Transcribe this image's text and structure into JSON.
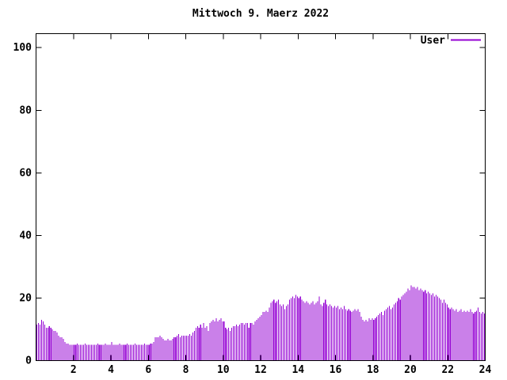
{
  "window": {
    "background": "#ffffff",
    "foreground": "#000000"
  },
  "legend": {
    "label": "User",
    "color": "#9400d3",
    "position": "top-right-inside"
  },
  "axes": {
    "y": {
      "tick_labels": [
        "0",
        "20",
        "40",
        "60",
        "80",
        "100"
      ],
      "tick_values": [
        0,
        20,
        40,
        60,
        80,
        100
      ]
    },
    "x": {
      "tick_labels": [
        "2",
        "4",
        "6",
        "8",
        "10",
        "12",
        "14",
        "16",
        "18",
        "20",
        "22",
        "24"
      ],
      "tick_values": [
        2,
        4,
        6,
        8,
        10,
        12,
        14,
        16,
        18,
        20,
        22,
        24
      ]
    }
  },
  "chart_data": {
    "type": "bar",
    "style": "gnuplot-impulses",
    "title": "Mittwoch 9. Maerz 2022",
    "xlabel": "",
    "ylabel": "",
    "xlim": [
      0,
      24
    ],
    "ylim": [
      0,
      100
    ],
    "grid": false,
    "legend_position": "top-right-inside",
    "x_unit": "hour_of_day",
    "interval_minutes": 5,
    "series": [
      {
        "name": "User",
        "color": "#9400d3",
        "values": [
          11.5,
          12,
          11.5,
          13,
          12.5,
          11.5,
          10.5,
          10.5,
          11,
          10.5,
          10,
          9.5,
          9.5,
          9,
          8,
          7.5,
          7.5,
          7,
          6,
          5.5,
          5.5,
          5,
          5,
          5,
          5,
          5,
          5.5,
          5,
          5,
          5,
          5,
          5.5,
          5,
          5,
          5,
          5,
          5,
          5,
          5,
          5.5,
          5,
          5,
          5,
          5,
          5.5,
          5,
          5,
          5,
          6,
          5,
          5,
          5,
          5,
          5.5,
          5,
          5,
          5,
          5,
          5.5,
          5,
          5,
          5,
          5,
          5.5,
          5,
          5,
          5,
          5,
          5,
          5.5,
          5,
          5,
          5,
          5.5,
          5.5,
          6,
          7.5,
          7.5,
          7.5,
          8,
          7.5,
          7,
          6.5,
          6.5,
          7,
          6.5,
          6.5,
          7,
          7.5,
          7.5,
          8,
          8.5,
          7.5,
          8,
          8,
          8,
          8,
          8,
          8.5,
          8,
          9,
          9.5,
          10.5,
          11,
          10.5,
          11.5,
          10.5,
          12,
          10.5,
          11,
          9.5,
          12,
          12.5,
          13,
          12.5,
          13.5,
          12.5,
          13,
          13.5,
          12.5,
          12.5,
          10.5,
          10,
          10.5,
          9.5,
          10.5,
          11,
          11,
          11.5,
          11,
          11.5,
          12,
          12,
          11.5,
          12,
          12,
          10.5,
          12,
          12,
          11.5,
          12.5,
          13,
          13.5,
          14,
          14.5,
          15.5,
          15.5,
          16,
          15.5,
          17,
          18.5,
          19,
          19.5,
          18.5,
          19,
          19.5,
          18,
          17.5,
          18,
          16.5,
          17.5,
          18,
          19.5,
          20,
          20.5,
          20,
          21,
          20.5,
          20,
          20.5,
          19.5,
          19,
          18.5,
          19,
          18.5,
          18,
          18.5,
          19,
          18,
          18.5,
          19,
          20.5,
          18,
          17.5,
          18.5,
          19.5,
          18,
          17.5,
          18,
          17.5,
          17,
          17.5,
          17,
          17.5,
          16.5,
          17,
          16.5,
          17.5,
          16.5,
          16,
          16.5,
          16,
          15.5,
          16,
          16.5,
          16,
          16.5,
          15.5,
          14,
          13,
          12.5,
          13,
          12.5,
          13.5,
          13,
          13.5,
          13,
          13.5,
          14,
          14.5,
          15,
          15.5,
          14.5,
          16,
          16.5,
          17,
          17.5,
          16.5,
          17,
          18,
          18.5,
          19,
          20,
          19.5,
          20.5,
          21,
          21.5,
          22,
          23,
          22.5,
          24,
          23.5,
          23.5,
          23,
          23.5,
          22.5,
          23,
          22.5,
          22,
          22.5,
          21.5,
          22,
          21.5,
          21,
          21.5,
          20.5,
          21,
          20.5,
          20,
          19.5,
          18.5,
          19.5,
          18.5,
          18,
          17,
          16.5,
          17,
          16.5,
          16,
          16.5,
          15.5,
          16,
          16.5,
          15.5,
          16,
          15.5,
          16,
          15.5,
          16.5,
          15.5,
          15,
          15.5,
          16,
          17,
          15.5,
          15,
          15.5,
          15
        ]
      }
    ]
  }
}
